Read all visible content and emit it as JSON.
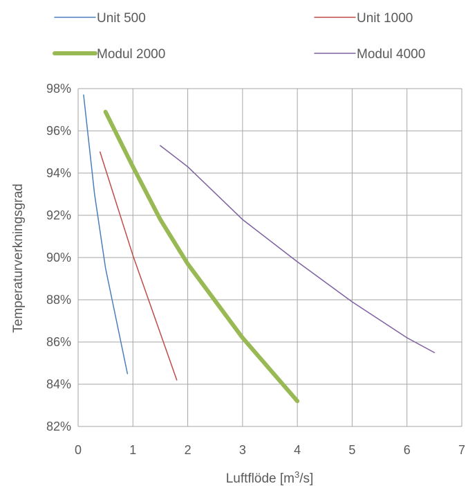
{
  "chart_data": {
    "type": "line",
    "title": "",
    "xlabel_text": "Luftflöde [m",
    "xlabel_sup": "3",
    "xlabel_tail": "/s]",
    "ylabel": "Temperaturverkningsgrad",
    "xlim": [
      0,
      7
    ],
    "ylim": [
      0.82,
      0.98
    ],
    "x_ticks": [
      0,
      1,
      2,
      3,
      4,
      5,
      6,
      7
    ],
    "y_ticks": [
      0.82,
      0.84,
      0.86,
      0.88,
      0.9,
      0.92,
      0.94,
      0.96,
      0.98
    ],
    "y_tick_labels": [
      "82%",
      "84%",
      "86%",
      "88%",
      "90%",
      "92%",
      "94%",
      "96%",
      "98%"
    ],
    "grid": true,
    "legend_position": "top",
    "series": [
      {
        "name": "Unit 500",
        "color": "#4a7ebb",
        "width": 1.5,
        "x": [
          0.1,
          0.3,
          0.5,
          0.9
        ],
        "y": [
          0.977,
          0.93,
          0.895,
          0.845
        ]
      },
      {
        "name": "Unit 1000",
        "color": "#be4b48",
        "width": 1.5,
        "x": [
          0.4,
          1.0,
          1.8
        ],
        "y": [
          0.95,
          0.901,
          0.842
        ]
      },
      {
        "name": "Modul 2000",
        "color": "#98b954",
        "width": 6,
        "x": [
          0.5,
          1.0,
          1.5,
          2.0,
          3.0,
          4.0
        ],
        "y": [
          0.969,
          0.943,
          0.918,
          0.897,
          0.862,
          0.832
        ]
      },
      {
        "name": "Modul 4000",
        "color": "#7d60a0",
        "width": 1.5,
        "x": [
          1.5,
          2.0,
          3.0,
          4.0,
          5.0,
          6.0,
          6.5
        ],
        "y": [
          0.953,
          0.943,
          0.918,
          0.898,
          0.879,
          0.862,
          0.855
        ]
      }
    ]
  }
}
